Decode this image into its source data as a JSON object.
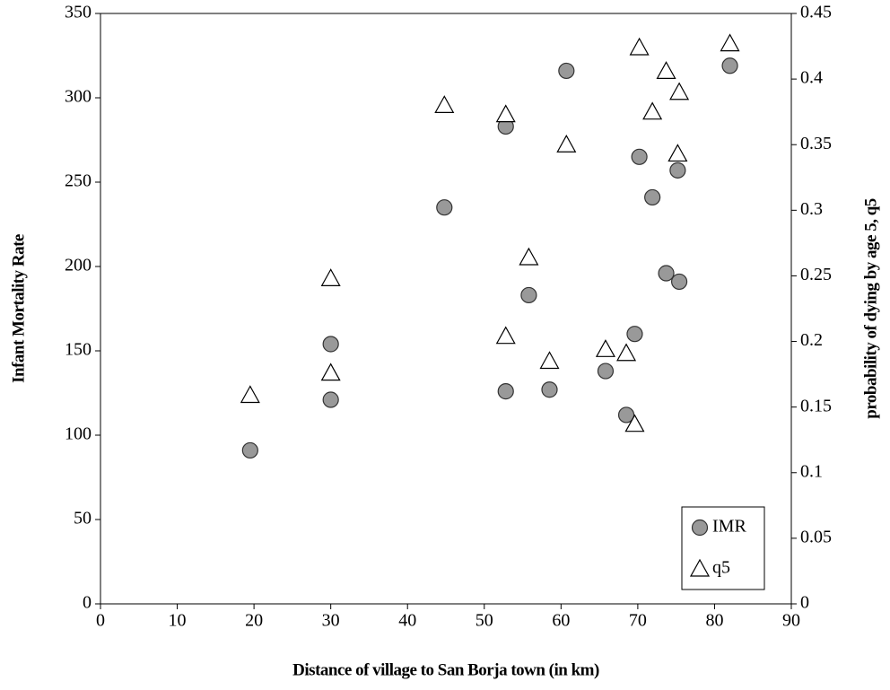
{
  "chart_data": {
    "type": "scatter",
    "xlabel": "Distance of village to San Borja town (in km)",
    "ylabel": "Infant Mortality Rate",
    "y2label": "probability of dying by age 5, q5",
    "xlim": [
      0,
      90
    ],
    "xticks": [
      0,
      10,
      20,
      30,
      40,
      50,
      60,
      70,
      80,
      90
    ],
    "ylim": [
      0,
      350
    ],
    "yticks": [
      0,
      50,
      100,
      150,
      200,
      250,
      300,
      350
    ],
    "y2lim": [
      0,
      0.45
    ],
    "y2ticks": [
      0,
      0.05,
      0.1,
      0.15,
      0.2,
      0.25,
      0.3,
      0.35,
      0.4,
      0.45
    ],
    "legend": "lower right",
    "series": [
      {
        "name": "IMR",
        "color": "#999999",
        "marker": "circle",
        "x": [
          19.5,
          30,
          30,
          44.8,
          52.8,
          52.8,
          55.8,
          58.5,
          60.7,
          65.8,
          68.5,
          69.6,
          70.2,
          71.9,
          73.7,
          75.2,
          75.4,
          82
        ],
        "values": [
          91,
          154,
          121,
          235,
          283,
          126,
          183,
          127,
          316,
          138,
          112,
          160,
          265,
          241,
          196,
          257,
          191,
          319
        ]
      },
      {
        "name": "q5",
        "color": "#ffffff",
        "marker": "triangle",
        "axis": "y2",
        "x": [
          19.5,
          30,
          30,
          44.8,
          52.8,
          52.8,
          55.8,
          58.5,
          60.7,
          65.8,
          68.5,
          69.6,
          70.2,
          71.9,
          73.7,
          75.2,
          75.4,
          82
        ],
        "values": [
          0.159,
          0.248,
          0.176,
          0.38,
          0.373,
          0.204,
          0.264,
          0.185,
          0.35,
          0.194,
          0.191,
          0.137,
          0.424,
          0.375,
          0.406,
          0.343,
          0.39,
          0.427
        ]
      }
    ]
  }
}
